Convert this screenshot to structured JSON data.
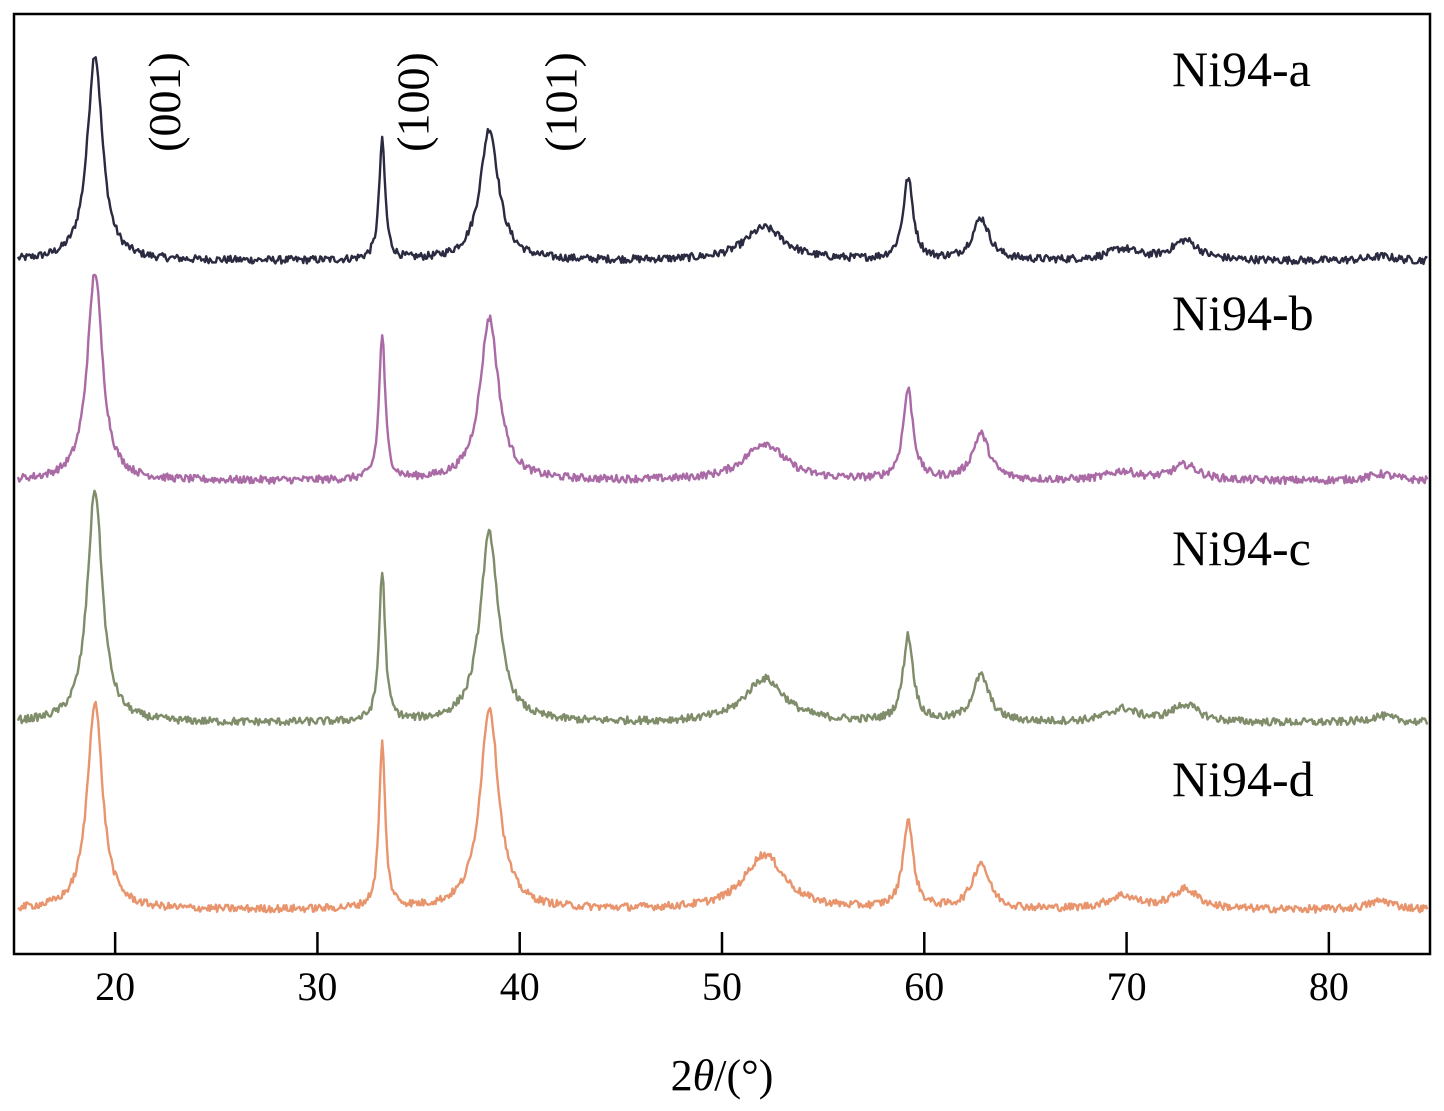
{
  "chart_data": {
    "type": "line",
    "title": "",
    "xlabel_prefix": "2",
    "xlabel_theta": "θ",
    "xlabel_suffix": "/(°)",
    "ylabel": "",
    "xlim": [
      15,
      85
    ],
    "x_ticks": [
      20,
      30,
      40,
      50,
      60,
      70,
      80
    ],
    "y_ticks_shown": false,
    "grid": false,
    "layout": "stacked (vertically offset) diffraction patterns",
    "peak_labels": [
      {
        "text": "(001)",
        "x": 23.2
      },
      {
        "text": "(100)",
        "x": 35.5
      },
      {
        "text": "(101)",
        "x": 42.8
      }
    ],
    "peaks": [
      {
        "x": 19.0,
        "width": 0.45
      },
      {
        "x": 33.2,
        "width": 0.18
      },
      {
        "x": 38.5,
        "width": 0.55
      },
      {
        "x": 52.1,
        "width": 1.2
      },
      {
        "x": 59.2,
        "width": 0.3
      },
      {
        "x": 62.8,
        "width": 0.5
      },
      {
        "x": 69.8,
        "width": 0.9
      },
      {
        "x": 72.9,
        "width": 0.8
      },
      {
        "x": 82.6,
        "width": 0.8
      }
    ],
    "series": [
      {
        "name": "Ni94-a",
        "color": "#2a2a40",
        "offset": 2.95,
        "peak_heights": [
          0.94,
          0.54,
          0.6,
          0.15,
          0.37,
          0.19,
          0.05,
          0.09,
          0.02
        ]
      },
      {
        "name": "Ni94-b",
        "color": "#a96aa6",
        "offset": 1.95,
        "peak_heights": [
          0.95,
          0.66,
          0.74,
          0.17,
          0.41,
          0.21,
          0.04,
          0.07,
          0.03
        ]
      },
      {
        "name": "Ni94-c",
        "color": "#7f8d6a",
        "offset": 0.85,
        "peak_heights": [
          1.06,
          0.68,
          0.86,
          0.2,
          0.39,
          0.21,
          0.06,
          0.08,
          0.03
        ]
      },
      {
        "name": "Ni94-d",
        "color": "#e8956e",
        "offset": 0.0,
        "peak_heights": [
          0.95,
          0.75,
          0.92,
          0.25,
          0.4,
          0.21,
          0.06,
          0.09,
          0.04
        ]
      }
    ]
  }
}
